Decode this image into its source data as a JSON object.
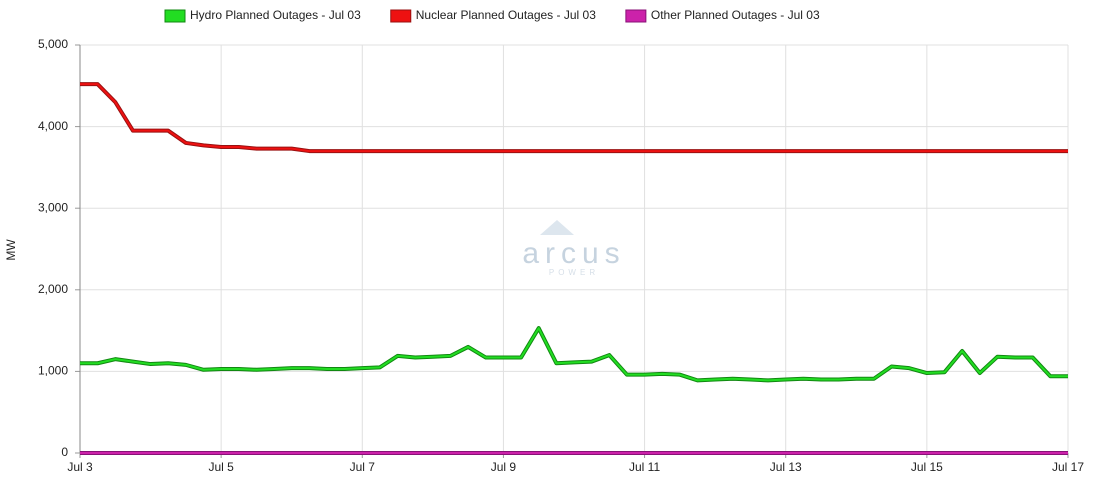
{
  "chart_data": {
    "type": "line",
    "y_label": "MW",
    "watermark": "arcus",
    "watermark_sub": "POWER",
    "x": [
      3,
      3.25,
      3.5,
      3.75,
      4,
      4.25,
      4.5,
      4.75,
      5,
      5.25,
      5.5,
      5.75,
      6,
      6.25,
      6.5,
      6.75,
      7,
      7.25,
      7.5,
      7.75,
      8,
      8.25,
      8.5,
      8.75,
      9,
      9.25,
      9.5,
      9.75,
      10,
      10.25,
      10.5,
      10.75,
      11,
      11.25,
      11.5,
      11.75,
      12,
      12.25,
      12.5,
      12.75,
      13,
      13.25,
      13.5,
      13.75,
      14,
      14.25,
      14.5,
      14.75,
      15,
      15.25,
      15.5,
      15.75,
      16,
      16.25,
      16.5,
      16.75,
      17
    ],
    "series": [
      {
        "name": "Hydro Planned Outages - Jul 03",
        "color": "#22dd22",
        "edge": "#118811",
        "values": [
          1100,
          1100,
          1150,
          1120,
          1090,
          1100,
          1080,
          1020,
          1030,
          1030,
          1020,
          1030,
          1040,
          1040,
          1030,
          1030,
          1040,
          1050,
          1190,
          1170,
          1180,
          1190,
          1300,
          1170,
          1170,
          1170,
          1530,
          1100,
          1110,
          1120,
          1200,
          960,
          960,
          970,
          960,
          890,
          900,
          910,
          900,
          890,
          900,
          910,
          900,
          900,
          910,
          910,
          1060,
          1040,
          980,
          990,
          1250,
          980,
          1180,
          1170,
          1170,
          940,
          940
        ]
      },
      {
        "name": "Nuclear Planned Outages - Jul 03",
        "color": "#ee1111",
        "edge": "#991111",
        "values": [
          4520,
          4520,
          4300,
          3950,
          3950,
          3950,
          3800,
          3770,
          3750,
          3750,
          3730,
          3730,
          3730,
          3700,
          3700,
          3700,
          3700,
          3700,
          3700,
          3700,
          3700,
          3700,
          3700,
          3700,
          3700,
          3700,
          3700,
          3700,
          3700,
          3700,
          3700,
          3700,
          3700,
          3700,
          3700,
          3700,
          3700,
          3700,
          3700,
          3700,
          3700,
          3700,
          3700,
          3700,
          3700,
          3700,
          3700,
          3700,
          3700,
          3700,
          3700,
          3700,
          3700,
          3700,
          3700,
          3700,
          3700
        ]
      },
      {
        "name": "Other Planned Outages - Jul 03",
        "color": "#cc22aa",
        "edge": "#881177",
        "values": [
          0,
          0,
          0,
          0,
          0,
          0,
          0,
          0,
          0,
          0,
          0,
          0,
          0,
          0,
          0,
          0,
          0,
          0,
          0,
          0,
          0,
          0,
          0,
          0,
          0,
          0,
          0,
          0,
          0,
          0,
          0,
          0,
          0,
          0,
          0,
          0,
          0,
          0,
          0,
          0,
          0,
          0,
          0,
          0,
          0,
          0,
          0,
          0,
          0,
          0,
          0,
          0,
          0,
          0,
          0,
          0,
          0
        ]
      }
    ],
    "xlim": [
      3,
      17
    ],
    "xticks": [
      {
        "value": 3,
        "label": "Jul 3"
      },
      {
        "value": 5,
        "label": "Jul 5"
      },
      {
        "value": 7,
        "label": "Jul 7"
      },
      {
        "value": 9,
        "label": "Jul 9"
      },
      {
        "value": 11,
        "label": "Jul 11"
      },
      {
        "value": 13,
        "label": "Jul 13"
      },
      {
        "value": 15,
        "label": "Jul 15"
      },
      {
        "value": 17,
        "label": "Jul 17"
      }
    ],
    "ylim": [
      0,
      5000
    ],
    "yticks": [
      0,
      {
        "value": 1000,
        "label": "1,000"
      },
      {
        "value": 2000,
        "label": "2,000"
      },
      {
        "value": 3000,
        "label": "3,000"
      },
      {
        "value": 4000,
        "label": "4,000"
      },
      {
        "value": 5000,
        "label": "5,000"
      }
    ],
    "grid": true
  }
}
